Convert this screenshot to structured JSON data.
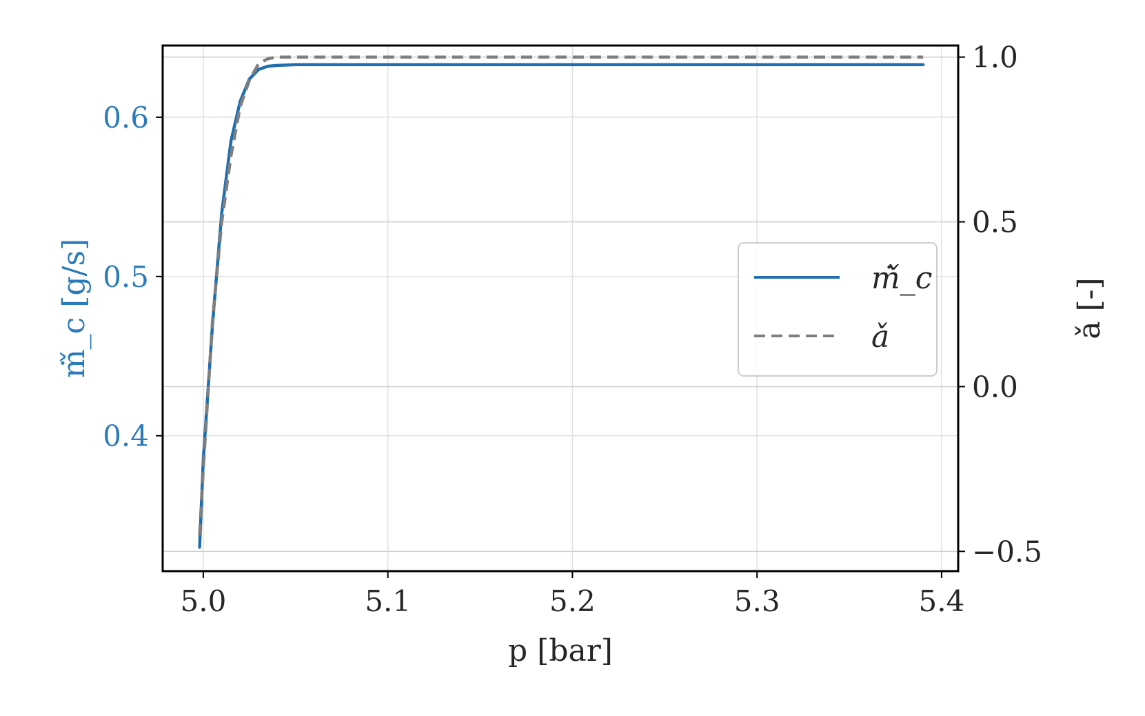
{
  "colors": {
    "mdot": "#1f6fb0",
    "a": "#7f7f7f",
    "left_axis": "#2b7bba",
    "grid": "#e0e0e0",
    "text": "#262626"
  },
  "chart_data": {
    "type": "line",
    "xlabel": "p [bar]",
    "ylabel_left": "ṁ̌_c [g/s]",
    "ylabel_right": "ǎ [-]",
    "xlim": [
      4.978,
      5.409
    ],
    "ylim_left": [
      0.315,
      0.645
    ],
    "ylim_right": [
      -0.56,
      1.035
    ],
    "x_ticks": [
      5.0,
      5.1,
      5.2,
      5.3,
      5.4
    ],
    "x_tick_labels": [
      "5.0",
      "5.1",
      "5.2",
      "5.3",
      "5.4"
    ],
    "y_left_ticks": [
      0.4,
      0.5,
      0.6
    ],
    "y_left_tick_labels": [
      "0.4",
      "0.5",
      "0.6"
    ],
    "y_right_ticks": [
      -0.5,
      0.0,
      0.5,
      1.0
    ],
    "y_right_tick_labels": [
      "−0.5",
      "0.0",
      "0.5",
      "1.0"
    ],
    "grid": true,
    "legend_position": "center-right",
    "series": [
      {
        "name": "ṁ̌_c",
        "axis": "left",
        "style": "solid",
        "x": [
          4.998,
          5.0,
          5.005,
          5.01,
          5.015,
          5.02,
          5.025,
          5.03,
          5.035,
          5.04,
          5.05,
          5.1,
          5.2,
          5.3,
          5.39
        ],
        "y": [
          0.33,
          0.385,
          0.47,
          0.54,
          0.585,
          0.61,
          0.624,
          0.63,
          0.632,
          0.6325,
          0.633,
          0.633,
          0.633,
          0.633,
          0.633
        ]
      },
      {
        "name": "ǎ",
        "axis": "right",
        "style": "dashed",
        "x": [
          4.998,
          5.0,
          5.005,
          5.01,
          5.015,
          5.02,
          5.025,
          5.03,
          5.035,
          5.04,
          5.05,
          5.1,
          5.2,
          5.3,
          5.39
        ],
        "y": [
          -0.45,
          -0.25,
          0.2,
          0.5,
          0.7,
          0.85,
          0.93,
          0.98,
          0.995,
          1.0,
          1.0,
          1.0,
          1.0,
          1.0,
          1.0
        ]
      }
    ]
  }
}
